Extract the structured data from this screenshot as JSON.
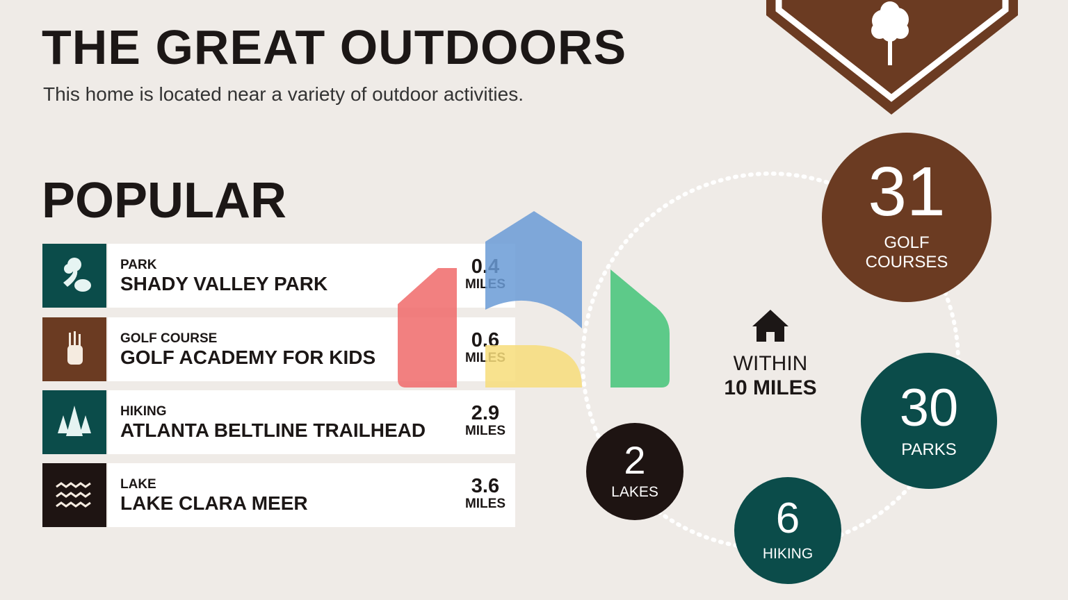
{
  "header": {
    "title": "THE GREAT OUTDOORS",
    "subtitle": "This home is located near a variety of outdoor activities.",
    "badge_icon": "tree-icon"
  },
  "popular": {
    "heading": "POPULAR",
    "items": [
      {
        "category": "PARK",
        "name": "SHADY VALLEY PARK",
        "distance": "0.4",
        "unit": "MILES",
        "icon": "park-icon",
        "color": "#0b4c4a"
      },
      {
        "category": "GOLF COURSE",
        "name": "GOLF ACADEMY FOR KIDS",
        "distance": "0.6",
        "unit": "MILES",
        "icon": "golf-bag-icon",
        "color": "#6b3b22"
      },
      {
        "category": "HIKING",
        "name": "ATLANTA BELTLINE TRAILHEAD",
        "distance": "2.9",
        "unit": "MILES",
        "icon": "pine-trees-icon",
        "color": "#0b4c4a"
      },
      {
        "category": "LAKE",
        "name": "LAKE CLARA MEER",
        "distance": "3.6",
        "unit": "MILES",
        "icon": "waves-icon",
        "color": "#1e1412"
      }
    ]
  },
  "summary": {
    "within_line1": "WITHIN",
    "within_line2": "10 MILES",
    "home_icon": "house-icon",
    "stats": [
      {
        "count": "31",
        "label1": "GOLF",
        "label2": "COURSES",
        "color": "#6b3b22"
      },
      {
        "count": "30",
        "label1": "PARKS",
        "color": "#0b4c4a"
      },
      {
        "count": "6",
        "label1": "HIKING",
        "color": "#0b4c4a"
      },
      {
        "count": "2",
        "label1": "LAKES",
        "color": "#1e1412"
      }
    ]
  },
  "colors": {
    "background": "#efebe7",
    "teal": "#0b4c4a",
    "brown": "#6b3b22",
    "dark": "#1e1412"
  }
}
